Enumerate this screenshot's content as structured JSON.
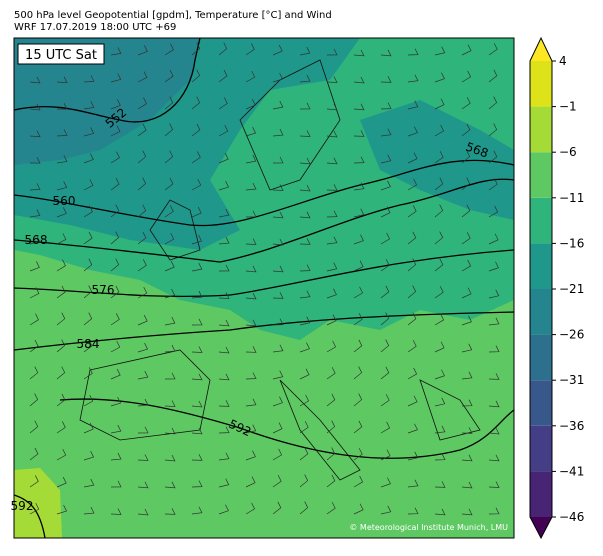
{
  "header": {
    "line1": "500 hPa level Geopotential [gpdm], Temperature [°C] and Wind",
    "line2": "WRF 17.07.2019 18:00 UTC +69"
  },
  "map": {
    "time_label": "15 UTC Sat",
    "credit": "© Meteorological Institute Munich, LMU",
    "contour_labels": [
      "552",
      "560",
      "568",
      "576",
      "584",
      "592",
      "568",
      "592"
    ]
  },
  "colorbar": {
    "lim": [
      -46,
      4
    ],
    "ticks": [
      {
        "value": -46,
        "label": "−46"
      },
      {
        "value": -41,
        "label": "−41"
      },
      {
        "value": -36,
        "label": "−36"
      },
      {
        "value": -31,
        "label": "−31"
      },
      {
        "value": -26,
        "label": "−26"
      },
      {
        "value": -21,
        "label": "−21"
      },
      {
        "value": -16,
        "label": "−16"
      },
      {
        "value": -11,
        "label": "−11"
      },
      {
        "value": -6,
        "label": "−6"
      },
      {
        "value": -1,
        "label": "−1"
      },
      4
    ],
    "colors": [
      "#440154",
      "#482475",
      "#433e85",
      "#38588c",
      "#2d708e",
      "#25858e",
      "#1f988b",
      "#2fb47c",
      "#5ec962",
      "#a5db36",
      "#dde318",
      "#fde725"
    ]
  }
}
